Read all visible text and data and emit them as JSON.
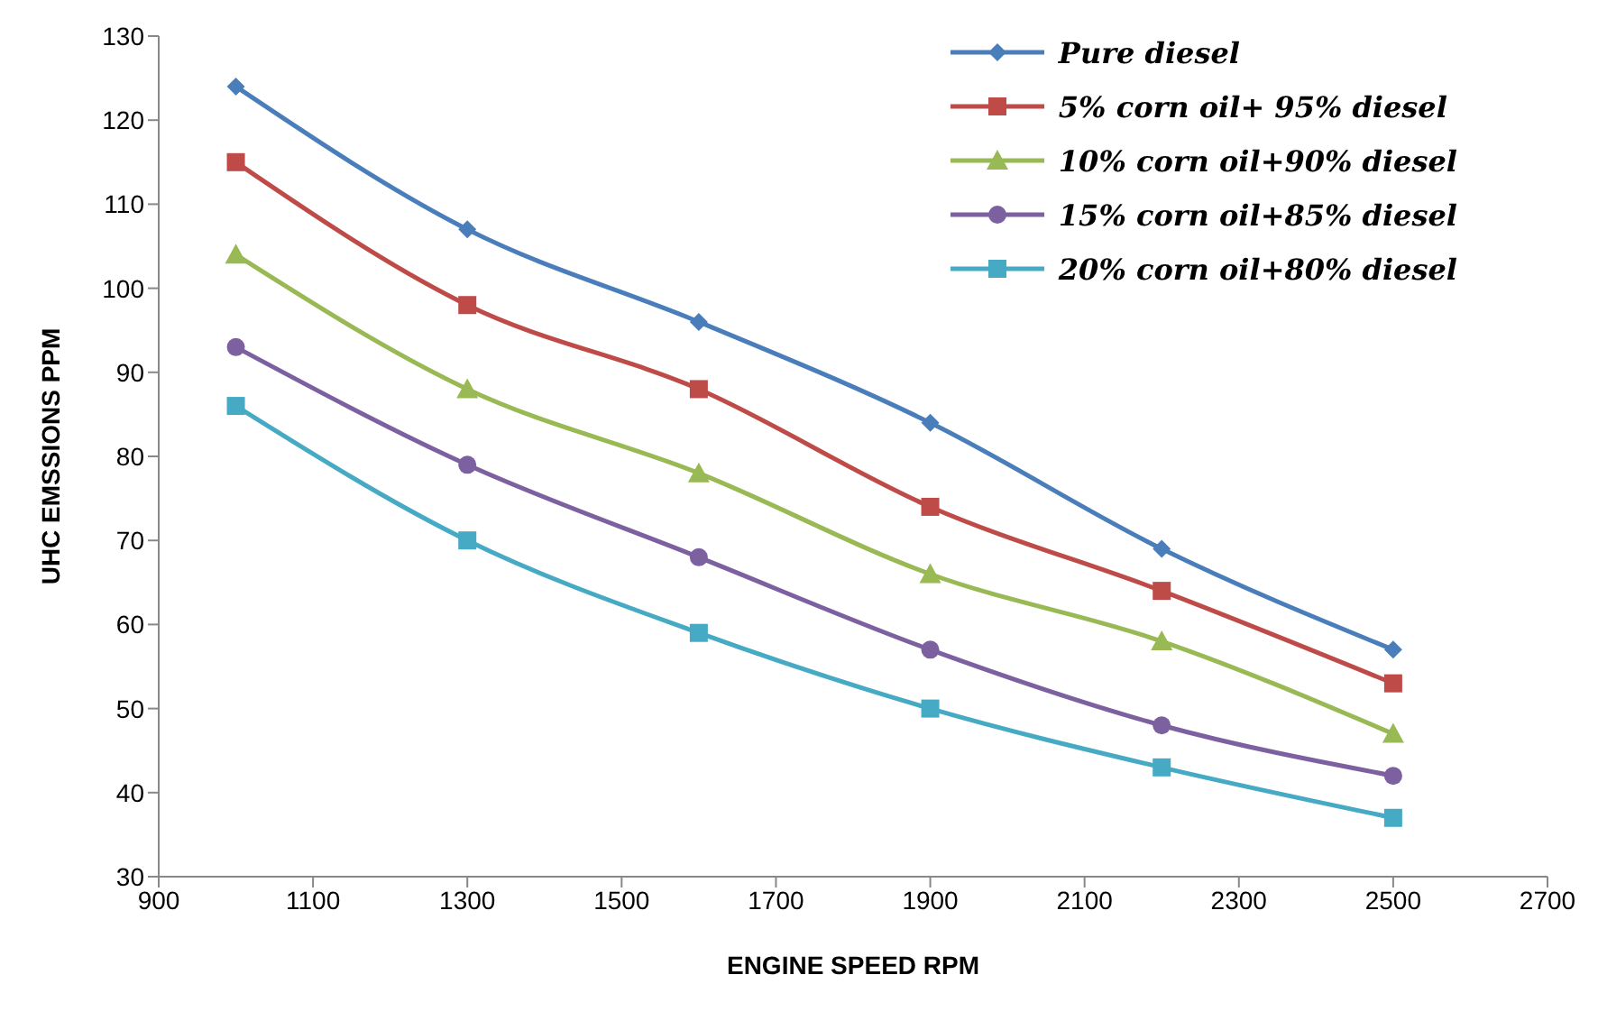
{
  "chart_data": {
    "type": "line",
    "xlabel": "ENGINE SPEED RPM",
    "ylabel": "UHC EMSSIONS PPM",
    "x": [
      1000,
      1300,
      1600,
      1900,
      2200,
      2500
    ],
    "series": [
      {
        "name": "Pure diesel",
        "color": "#4a7ebb",
        "marker": "diamond",
        "values": [
          124,
          107,
          96,
          84,
          69,
          57
        ]
      },
      {
        "name": "5% corn oil+ 95% diesel",
        "color": "#be4b48",
        "marker": "square",
        "values": [
          115,
          98,
          88,
          74,
          64,
          53
        ]
      },
      {
        "name": "10% corn oil+90% diesel",
        "color": "#98b954",
        "marker": "triangle",
        "values": [
          104,
          88,
          78,
          66,
          58,
          47
        ]
      },
      {
        "name": "15% corn oil+85% diesel",
        "color": "#7d60a0",
        "marker": "circle",
        "values": [
          93,
          79,
          68,
          57,
          48,
          42
        ]
      },
      {
        "name": "20% corn oil+80% diesel",
        "color": "#46aac5",
        "marker": "square",
        "values": [
          86,
          70,
          59,
          50,
          43,
          37
        ]
      }
    ],
    "xlim": [
      900,
      2700
    ],
    "xticks": [
      900,
      1100,
      1300,
      1500,
      1700,
      1900,
      2100,
      2300,
      2500,
      2700
    ],
    "ylim": [
      30,
      130
    ],
    "yticks": [
      30,
      40,
      50,
      60,
      70,
      80,
      90,
      100,
      110,
      120,
      130
    ],
    "grid": false,
    "legend": "top right",
    "line_style": "solid"
  }
}
